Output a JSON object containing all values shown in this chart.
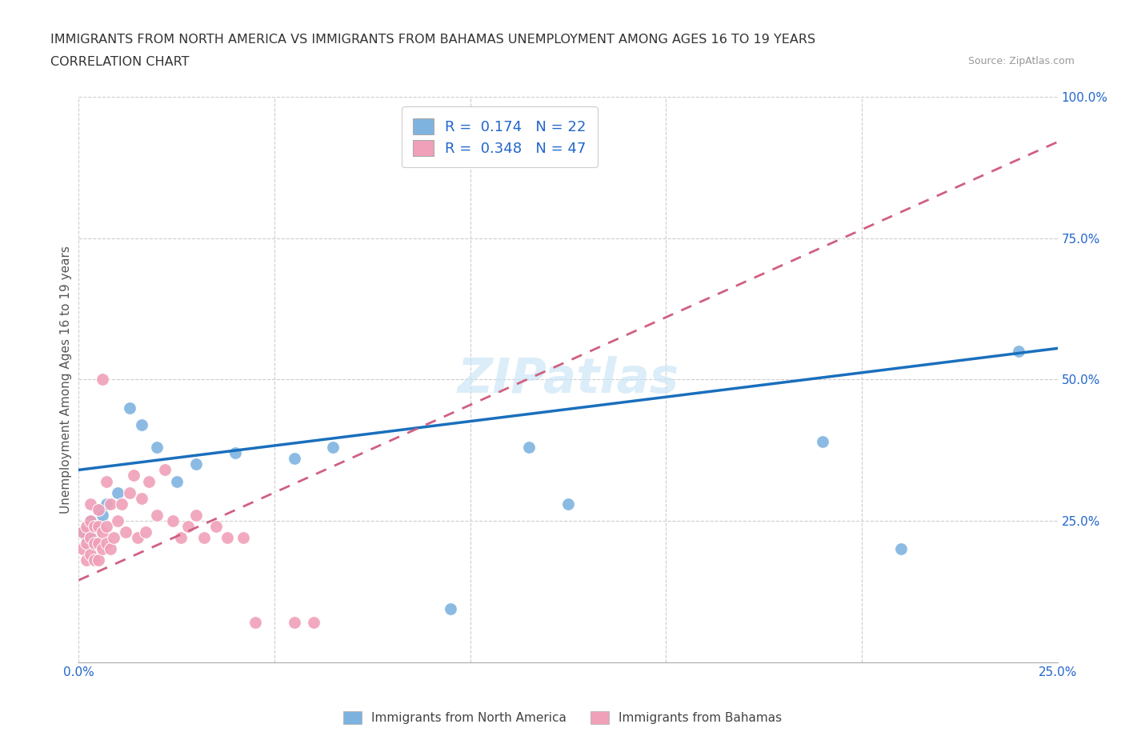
{
  "title_line1": "IMMIGRANTS FROM NORTH AMERICA VS IMMIGRANTS FROM BAHAMAS UNEMPLOYMENT AMONG AGES 16 TO 19 YEARS",
  "title_line2": "CORRELATION CHART",
  "source_text": "Source: ZipAtlas.com",
  "ylabel": "Unemployment Among Ages 16 to 19 years",
  "xlim": [
    0.0,
    0.25
  ],
  "ylim": [
    0.0,
    1.0
  ],
  "r_north_america": 0.174,
  "n_north_america": 22,
  "r_bahamas": 0.348,
  "n_bahamas": 47,
  "color_north_america": "#7eb3e0",
  "color_bahamas": "#f0a0b8",
  "color_trend_north_america": "#1a6fbd",
  "color_trend_bahamas": "#d06080",
  "legend_label_north": "Immigrants from North America",
  "legend_label_bahamas": "Immigrants from Bahamas",
  "na_x": [
    0.001,
    0.002,
    0.003,
    0.004,
    0.005,
    0.006,
    0.007,
    0.01,
    0.013,
    0.016,
    0.02,
    0.025,
    0.03,
    0.04,
    0.055,
    0.065,
    0.095,
    0.115,
    0.125,
    0.19,
    0.21,
    0.24
  ],
  "na_y": [
    0.23,
    0.22,
    0.25,
    0.22,
    0.27,
    0.26,
    0.28,
    0.3,
    0.45,
    0.42,
    0.38,
    0.32,
    0.35,
    0.37,
    0.36,
    0.38,
    0.095,
    0.38,
    0.28,
    0.39,
    0.2,
    0.55
  ],
  "bah_x": [
    0.001,
    0.001,
    0.002,
    0.002,
    0.002,
    0.003,
    0.003,
    0.003,
    0.003,
    0.004,
    0.004,
    0.004,
    0.005,
    0.005,
    0.005,
    0.005,
    0.006,
    0.006,
    0.006,
    0.007,
    0.007,
    0.007,
    0.008,
    0.008,
    0.009,
    0.01,
    0.011,
    0.012,
    0.013,
    0.014,
    0.015,
    0.016,
    0.017,
    0.018,
    0.02,
    0.022,
    0.024,
    0.026,
    0.028,
    0.03,
    0.032,
    0.035,
    0.038,
    0.042,
    0.045,
    0.055,
    0.06
  ],
  "bah_y": [
    0.2,
    0.23,
    0.18,
    0.21,
    0.24,
    0.19,
    0.22,
    0.25,
    0.28,
    0.18,
    0.21,
    0.24,
    0.18,
    0.21,
    0.24,
    0.27,
    0.2,
    0.23,
    0.5,
    0.21,
    0.24,
    0.32,
    0.2,
    0.28,
    0.22,
    0.25,
    0.28,
    0.23,
    0.3,
    0.33,
    0.22,
    0.29,
    0.23,
    0.32,
    0.26,
    0.34,
    0.25,
    0.22,
    0.24,
    0.26,
    0.22,
    0.24,
    0.22,
    0.22,
    0.07,
    0.07,
    0.07
  ],
  "na_trend_x0": 0.0,
  "na_trend_y0": 0.34,
  "na_trend_x1": 0.25,
  "na_trend_y1": 0.555,
  "bah_trend_x0": 0.0,
  "bah_trend_y0": 0.145,
  "bah_trend_x1": 0.25,
  "bah_trend_y1": 0.92
}
